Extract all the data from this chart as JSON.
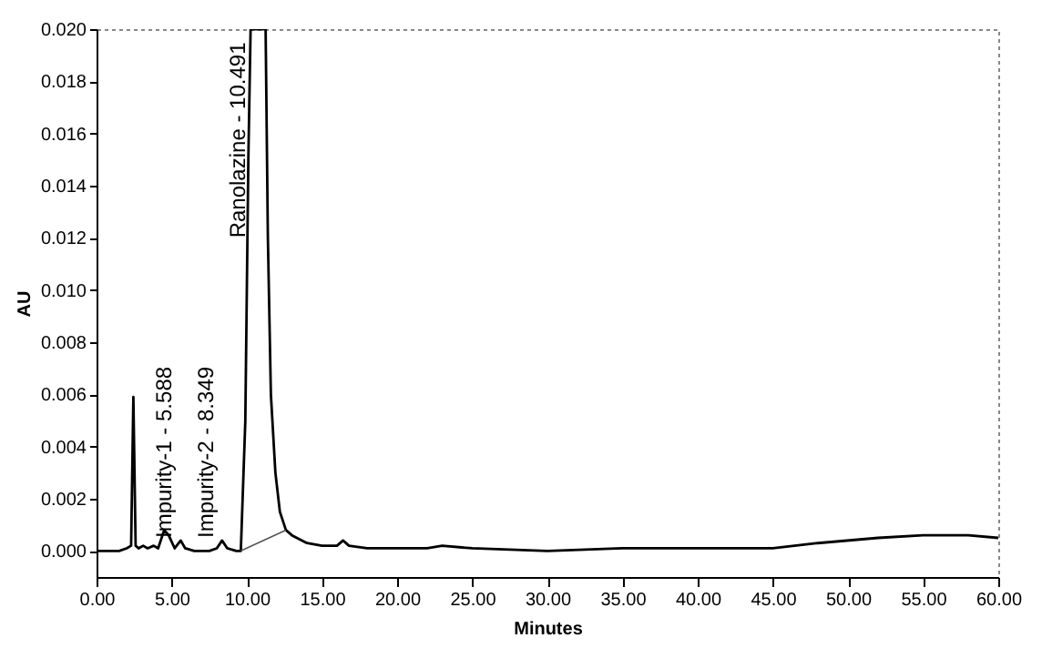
{
  "chart_data": {
    "type": "line",
    "xlabel": "Minutes",
    "ylabel": "AU",
    "xlim": [
      0,
      60
    ],
    "ylim": [
      -0.001,
      0.02
    ],
    "xticks": [
      {
        "value": 0,
        "label": "0.00"
      },
      {
        "value": 5,
        "label": "5.00"
      },
      {
        "value": 10,
        "label": "10.00"
      },
      {
        "value": 15,
        "label": "15.00"
      },
      {
        "value": 20,
        "label": "20.00"
      },
      {
        "value": 25,
        "label": "25.00"
      },
      {
        "value": 30,
        "label": "30.00"
      },
      {
        "value": 35,
        "label": "35.00"
      },
      {
        "value": 40,
        "label": "40.00"
      },
      {
        "value": 45,
        "label": "45.00"
      },
      {
        "value": 50,
        "label": "50.00"
      },
      {
        "value": 55,
        "label": "55.00"
      },
      {
        "value": 60,
        "label": "60.00"
      }
    ],
    "yticks": [
      {
        "value": 0,
        "label": "0.000"
      },
      {
        "value": 0.002,
        "label": "0.002"
      },
      {
        "value": 0.004,
        "label": "0.004"
      },
      {
        "value": 0.006,
        "label": "0.006"
      },
      {
        "value": 0.008,
        "label": "0.008"
      },
      {
        "value": 0.01,
        "label": "0.010"
      },
      {
        "value": 0.012,
        "label": "0.012"
      },
      {
        "value": 0.014,
        "label": "0.014"
      },
      {
        "value": 0.016,
        "label": "0.016"
      },
      {
        "value": 0.018,
        "label": "0.018"
      },
      {
        "value": 0.02,
        "label": "0.020"
      }
    ],
    "line_style": "solid",
    "series": [
      {
        "color": "#000000",
        "x": [
          0,
          1.5,
          2,
          2.3,
          2.45,
          2.6,
          2.8,
          3.1,
          3.4,
          3.8,
          4.1,
          4.5,
          4.8,
          5.2,
          5.6,
          5.9,
          6.5,
          7.5,
          8,
          8.35,
          8.7,
          9.3,
          9.6,
          9.9,
          10.1,
          10.25,
          11.25,
          11.4,
          11.6,
          11.9,
          12.2,
          12.6,
          13,
          14,
          15,
          16,
          16.4,
          16.8,
          18,
          22,
          23,
          25,
          30,
          35,
          40,
          43,
          45,
          48,
          52,
          55,
          58,
          60
        ],
        "values": [
          0,
          0,
          0.0001,
          0.0002,
          0.0059,
          0.0002,
          0.0001,
          0.0002,
          0.0001,
          0.0002,
          0.0001,
          0.0008,
          0.0006,
          0.0001,
          0.0004,
          0.0001,
          0,
          0,
          0.0001,
          0.0004,
          0.0001,
          0,
          0,
          0.005,
          0.015,
          0.02,
          0.02,
          0.012,
          0.006,
          0.003,
          0.0015,
          0.0008,
          0.0006,
          0.0003,
          0.0002,
          0.0002,
          0.0004,
          0.0002,
          0.0001,
          0.0001,
          0.0002,
          0.0001,
          0,
          0.0001,
          0.0001,
          0.0001,
          0.0001,
          0.0003,
          0.0005,
          0.0006,
          0.0006,
          0.0005
        ]
      },
      {
        "color": "#555555",
        "x": [
          9.6,
          12.6
        ],
        "values": [
          0,
          0.0008
        ]
      }
    ],
    "annotations": [
      {
        "text": "Impurity-1 - 5.588",
        "x": 5.588,
        "y": 0.0005
      },
      {
        "text": "Impurity-2 - 8.349",
        "x": 8.349,
        "y": 0.0005
      },
      {
        "text": "Ranolazine - 10.491",
        "x": 10.491,
        "y": 0.012
      }
    ]
  }
}
